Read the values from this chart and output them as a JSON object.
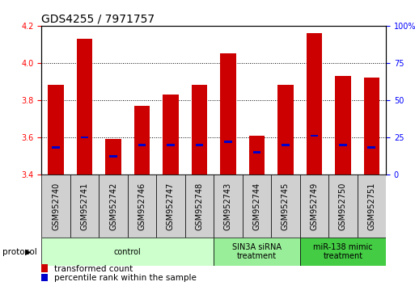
{
  "title": "GDS4255 / 7971757",
  "samples": [
    "GSM952740",
    "GSM952741",
    "GSM952742",
    "GSM952746",
    "GSM952747",
    "GSM952748",
    "GSM952743",
    "GSM952744",
    "GSM952745",
    "GSM952749",
    "GSM952750",
    "GSM952751"
  ],
  "transformed_count": [
    3.88,
    4.13,
    3.59,
    3.77,
    3.83,
    3.88,
    4.05,
    3.61,
    3.88,
    4.16,
    3.93,
    3.92
  ],
  "percentile_rank": [
    18,
    25,
    12,
    20,
    20,
    20,
    22,
    15,
    20,
    26,
    20,
    18
  ],
  "ylim_left": [
    3.4,
    4.2
  ],
  "ylim_right": [
    0,
    100
  ],
  "yticks_left": [
    3.4,
    3.6,
    3.8,
    4.0,
    4.2
  ],
  "yticks_right": [
    0,
    25,
    50,
    75,
    100
  ],
  "bar_color": "#cc0000",
  "blue_color": "#0000cc",
  "bar_bottom": 3.4,
  "protocol_groups": [
    {
      "label": "control",
      "start": 0,
      "end": 6,
      "color": "#ccffcc"
    },
    {
      "label": "SIN3A siRNA\ntreatment",
      "start": 6,
      "end": 9,
      "color": "#99ee99"
    },
    {
      "label": "miR-138 mimic\ntreatment",
      "start": 9,
      "end": 12,
      "color": "#44cc44"
    }
  ],
  "legend_items": [
    {
      "label": "transformed count",
      "color": "#cc0000"
    },
    {
      "label": "percentile rank within the sample",
      "color": "#0000cc"
    }
  ],
  "grid_color": "black",
  "bar_width": 0.55,
  "title_fontsize": 10,
  "tick_label_fontsize": 7,
  "axis_label_fontsize": 8
}
